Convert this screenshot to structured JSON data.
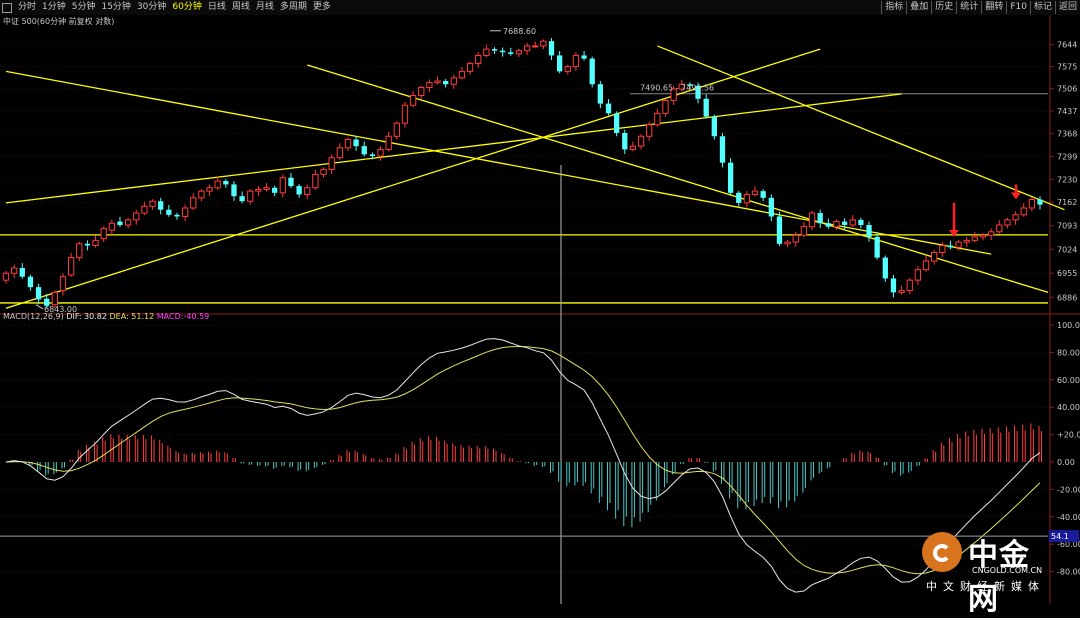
{
  "toolbar": {
    "periods": [
      "分时",
      "1分钟",
      "5分钟",
      "15分钟",
      "30分钟",
      "60分钟",
      "日线",
      "周线",
      "月线",
      "多周期",
      "更多"
    ],
    "active_period": "60分钟",
    "tools": [
      "指标",
      "叠加",
      "历史",
      "统计",
      "翻转",
      "F10",
      "标记",
      "返回"
    ]
  },
  "chart_data": [
    {
      "type": "candlestick",
      "title": "中证 500(60分钟 前复权 对数)",
      "y_ticks": [
        "7644",
        "7575",
        "7506",
        "7437",
        "7368",
        "7299",
        "7230",
        "7162",
        "7093",
        "7024",
        "6955",
        "6886"
      ],
      "ylim": [
        6850,
        7700
      ],
      "scale": "log",
      "up_color": "#ff3b3b",
      "down_color": "#54ffff",
      "annotations": [
        {
          "text": "7688.60",
          "note": "high"
        },
        {
          "text": "6843.00",
          "note": "low"
        },
        {
          "text": "7490.65 - 7490.56",
          "note": "level"
        }
      ],
      "horizontal_levels": [
        7066,
        6870
      ],
      "close": [
        6955,
        6970,
        6945,
        6915,
        6880,
        6862,
        6900,
        6945,
        7000,
        7040,
        7035,
        7050,
        7085,
        7100,
        7095,
        7110,
        7130,
        7150,
        7165,
        7140,
        7125,
        7120,
        7145,
        7175,
        7195,
        7205,
        7225,
        7215,
        7180,
        7165,
        7195,
        7200,
        7205,
        7190,
        7235,
        7210,
        7185,
        7205,
        7245,
        7260,
        7295,
        7325,
        7350,
        7330,
        7305,
        7300,
        7320,
        7360,
        7400,
        7455,
        7485,
        7510,
        7525,
        7530,
        7520,
        7540,
        7560,
        7585,
        7610,
        7630,
        7625,
        7620,
        7615,
        7625,
        7640,
        7640,
        7655,
        7610,
        7560,
        7575,
        7610,
        7600,
        7520,
        7460,
        7430,
        7370,
        7320,
        7330,
        7360,
        7395,
        7430,
        7470,
        7505,
        7520,
        7515,
        7475,
        7420,
        7360,
        7280,
        7190,
        7160,
        7185,
        7195,
        7175,
        7120,
        7040,
        7045,
        7065,
        7090,
        7130,
        7100,
        7090,
        7105,
        7095,
        7110,
        7095,
        7060,
        7000,
        6940,
        6900,
        6905,
        6935,
        6965,
        6990,
        7015,
        7035,
        7030,
        7045,
        7050,
        7060,
        7065,
        7075,
        7095,
        7110,
        7125,
        7145,
        7170,
        7155
      ],
      "open_delta": [
        -20,
        -15,
        25,
        30,
        35,
        20,
        -35,
        -40,
        -50,
        -40,
        5,
        -15,
        -30,
        -20,
        10,
        -15,
        -20,
        -20,
        -15,
        25,
        15,
        5,
        -25,
        -30,
        -20,
        -10,
        -20,
        10,
        35,
        15,
        -30,
        -5,
        -5,
        15,
        -45,
        25,
        25,
        -20,
        -40,
        -15,
        -35,
        -30,
        -25,
        20,
        25,
        5,
        -20,
        -40,
        -40,
        -55,
        -30,
        -25,
        -15,
        -5,
        10,
        -20,
        -20,
        -25,
        -25,
        -20,
        5,
        5,
        5,
        -10,
        -15,
        0,
        -15,
        45,
        50,
        -15,
        -35,
        10,
        80,
        60,
        30,
        60,
        50,
        -10,
        -30,
        -35,
        -35,
        -40,
        -35,
        -15,
        5,
        40,
        55,
        60,
        80,
        90,
        30,
        -25,
        -10,
        20,
        55,
        80,
        -5,
        -20,
        -25,
        -40,
        30,
        10,
        -15,
        10,
        -15,
        15,
        35,
        60,
        60,
        40,
        -5,
        -30,
        -30,
        -25,
        -25,
        -20,
        5,
        -15,
        -5,
        -10,
        -5,
        -10,
        -20,
        -15,
        -15,
        -20,
        -25,
        15
      ]
    },
    {
      "type": "macd",
      "title": "MACD(12,26,9)",
      "params": [
        12,
        26,
        9
      ],
      "dif_label": "DIF:",
      "dif": 30.82,
      "dea_label": "DEA:",
      "dea": 51.12,
      "macd_label": "MACD:",
      "macd": -40.59,
      "y_ticks": [
        "100.00",
        "80.00",
        "60.00",
        "40.00",
        "+20.00",
        "0.00",
        "-20.00",
        "-40.00",
        "-60.00",
        "-80.00"
      ],
      "ylim": [
        -100,
        100
      ],
      "current_marker": "54.1",
      "colors": {
        "dif": "#e8e8e8",
        "dea": "#e0e060",
        "pos": "#ff4040",
        "neg": "#4ec8c8"
      }
    }
  ],
  "logo": {
    "brand": "中金网",
    "url": "CNGOLD.COM.CN",
    "slogan": "中文财经新媒体"
  }
}
